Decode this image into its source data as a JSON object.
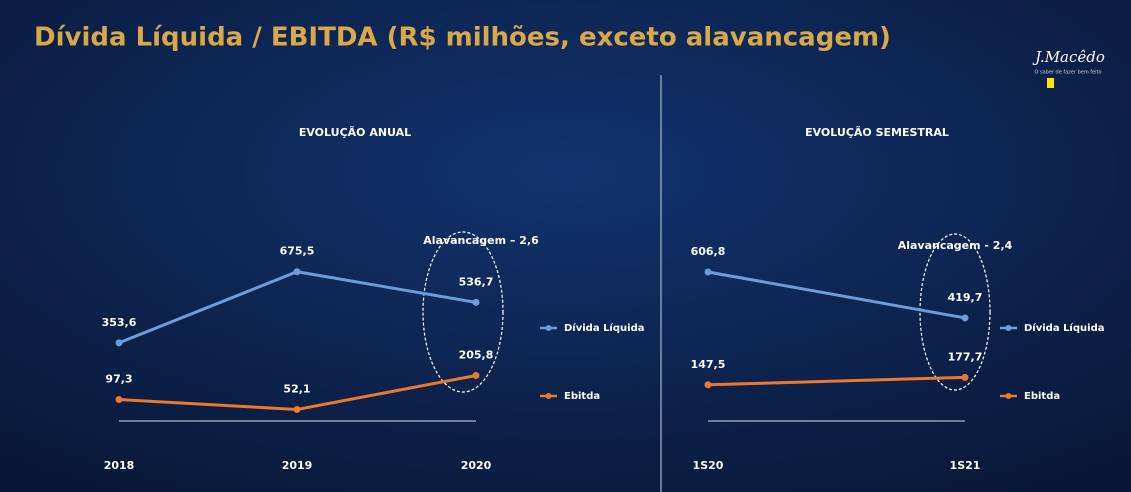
{
  "title": "Dívida Líquida / EBITDA (R$ milhões, exceto alavancagem)",
  "logo": {
    "name": "J.Macêdo",
    "tagline": "O saber de fazer bem feito"
  },
  "chart_data": [
    {
      "type": "line",
      "title": "EVOLUÇÃO ANUAL",
      "categories": [
        "2018",
        "2019",
        "2020"
      ],
      "series": [
        {
          "name": "Dívida Líquida",
          "color": "#6f9bd6",
          "values": [
            353.6,
            675.5,
            536.7
          ],
          "value_labels": [
            "353,6",
            "675,5",
            "536,7"
          ]
        },
        {
          "name": "Ebitda",
          "color": "#e8792f",
          "values": [
            97.3,
            52.1,
            205.8
          ],
          "value_labels": [
            "97,3",
            "52,1",
            "205,8"
          ]
        }
      ],
      "annotation": "Alavancagem – 2,6",
      "ylim": [
        0,
        1000
      ]
    },
    {
      "type": "line",
      "title": "EVOLUÇÃO SEMESTRAL",
      "categories": [
        "1S20",
        "1S21"
      ],
      "series": [
        {
          "name": "Dívida Líquida",
          "color": "#6f9bd6",
          "values": [
            606.8,
            419.7
          ],
          "value_labels": [
            "606,8",
            "419,7"
          ]
        },
        {
          "name": "Ebitda",
          "color": "#e8792f",
          "values": [
            147.5,
            177.7
          ],
          "value_labels": [
            "147,5",
            "177,7"
          ]
        }
      ],
      "annotation": "Alavancagem - 2,4",
      "ylim": [
        0,
        900
      ]
    }
  ]
}
